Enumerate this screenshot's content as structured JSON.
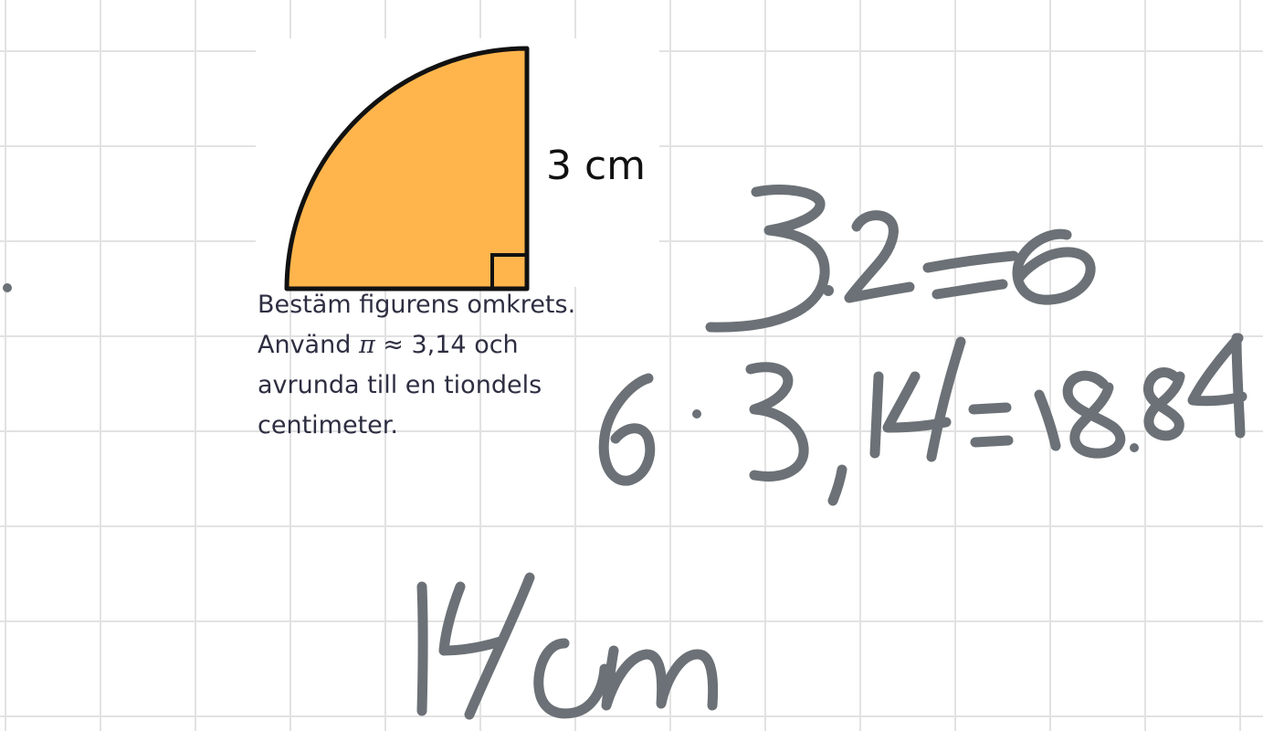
{
  "figure": {
    "dimension_label": "3 cm",
    "fill_color": "#FFB54C",
    "stroke_color": "#111111"
  },
  "task": {
    "line1": "Bestäm figurens omkrets.",
    "line2_prefix": "Använd ",
    "pi_symbol": "π",
    "line2_suffix": " ≈ 3,14 och",
    "line3": "avrunda till en tiondels",
    "line4": "centimeter."
  },
  "handwriting": {
    "ink_color": "#6B7176",
    "line1": "3·2=6",
    "line2": "6·3,14=18.84",
    "line3": "14cm"
  }
}
